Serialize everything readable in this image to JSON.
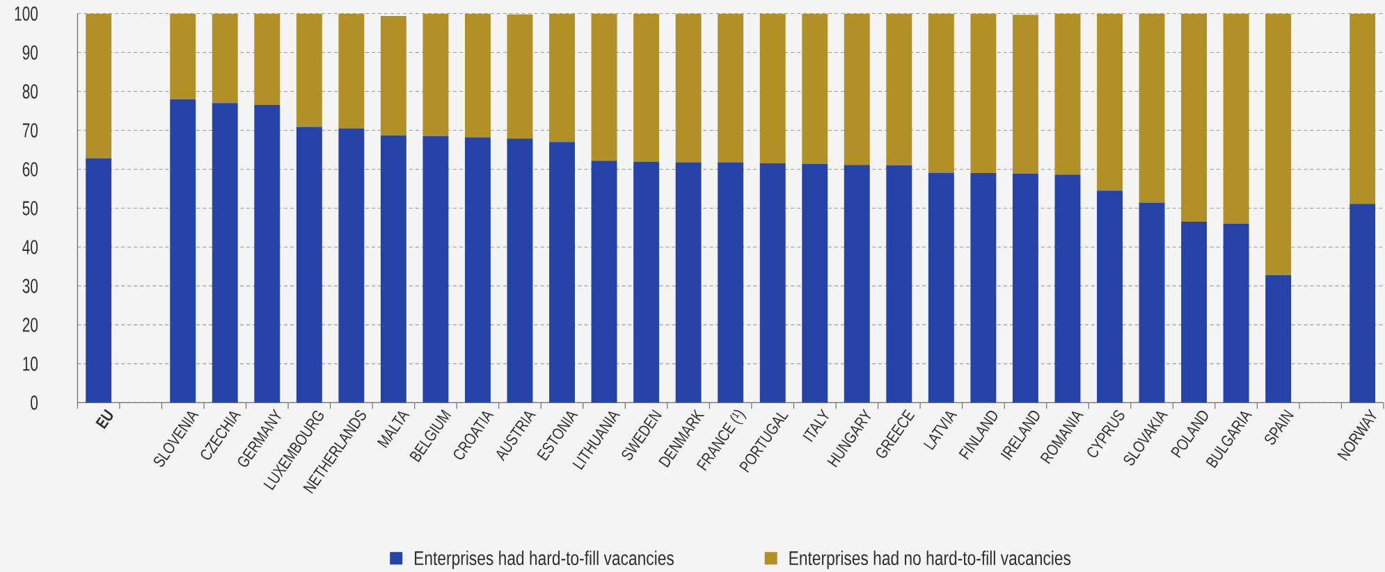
{
  "chart_data": {
    "type": "bar",
    "stacked": true,
    "categories": [
      "EU",
      null,
      "SLOVENIA",
      "CZECHIA",
      "GERMANY",
      "LUXEMBOURG",
      "NETHERLANDS",
      "MALTA",
      "BELGIUM",
      "CROATIA",
      "AUSTRIA",
      "ESTONIA",
      "LITHUANIA",
      "SWEDEN",
      "DENMARK",
      "FRANCE (¹)",
      "PORTUGAL",
      "ITALY",
      "HUNGARY",
      "GREECE",
      "LATVIA",
      "FINLAND",
      "IRELAND",
      "ROMANIA",
      "CYPRUS",
      "SLOVAKIA",
      "POLAND",
      "BULGARIA",
      "SPAIN",
      null,
      "NORWAY"
    ],
    "series": [
      {
        "name": "Enterprises had hard-to-fill vacancies",
        "color": "#2644a7",
        "values": [
          62.8,
          null,
          78.0,
          77.0,
          76.5,
          70.9,
          70.5,
          68.7,
          68.5,
          68.2,
          67.9,
          67.0,
          62.2,
          61.9,
          61.8,
          61.8,
          61.5,
          61.4,
          61.1,
          61.0,
          59.1,
          59.0,
          58.9,
          58.6,
          54.5,
          51.4,
          46.5,
          46.0,
          32.8,
          null,
          51.1
        ]
      },
      {
        "name": "Enterprises had no hard-to-fill vacancies",
        "color": "#b19026",
        "values": [
          37.2,
          null,
          22.0,
          23.0,
          23.5,
          29.1,
          29.5,
          30.7,
          31.5,
          31.8,
          31.9,
          33.0,
          37.8,
          38.1,
          38.2,
          38.2,
          38.5,
          38.6,
          38.9,
          39.0,
          40.9,
          41.0,
          40.8,
          41.4,
          45.5,
          48.6,
          53.5,
          54.0,
          67.2,
          null,
          48.9
        ]
      }
    ],
    "ylim": [
      0,
      100
    ],
    "yticks": [
      0,
      10,
      20,
      30,
      40,
      50,
      60,
      70,
      80,
      90,
      100
    ],
    "grid": "y",
    "legend": "bottom"
  }
}
